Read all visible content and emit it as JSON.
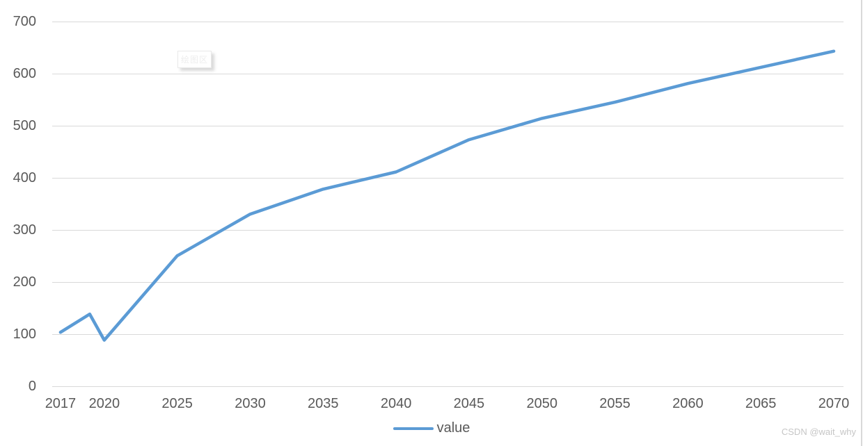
{
  "chart_data": {
    "type": "line",
    "title": "",
    "xlabel": "",
    "ylabel": "",
    "series": [
      {
        "name": "value",
        "x": [
          2017,
          2019,
          2020,
          2025,
          2030,
          2035,
          2040,
          2045,
          2050,
          2055,
          2060,
          2065,
          2070
        ],
        "values": [
          103,
          138,
          88,
          250,
          330,
          378,
          411,
          473,
          514,
          545,
          581,
          612,
          643
        ]
      }
    ],
    "x_ticks": [
      2017,
      2020,
      2025,
      2030,
      2035,
      2040,
      2045,
      2050,
      2055,
      2060,
      2065,
      2070
    ],
    "y_ticks": [
      0,
      100,
      200,
      300,
      400,
      500,
      600,
      700
    ],
    "xlim": [
      2016.43,
      2070.67
    ],
    "ylim": [
      0,
      700
    ],
    "grid": "horizontal",
    "legend_position": "bottom-center",
    "colors": {
      "line": "#5B9BD5",
      "gridline": "#D9D9D9",
      "axis_text": "#595959"
    },
    "line_width": 4.5
  },
  "legend": {
    "label": "value"
  },
  "tooltip": {
    "label": "绘图区"
  },
  "watermark": {
    "text": "CSDN @wait_why"
  }
}
